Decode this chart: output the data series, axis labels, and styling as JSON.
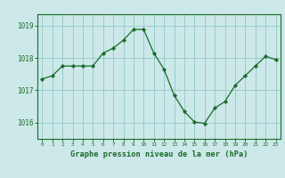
{
  "x": [
    0,
    1,
    2,
    3,
    4,
    5,
    6,
    7,
    8,
    9,
    10,
    11,
    12,
    13,
    14,
    15,
    16,
    17,
    18,
    19,
    20,
    21,
    22,
    23
  ],
  "y": [
    1017.35,
    1017.45,
    1017.75,
    1017.75,
    1017.75,
    1017.75,
    1018.15,
    1018.3,
    1018.55,
    1018.88,
    1018.88,
    1018.15,
    1017.65,
    1016.85,
    1016.35,
    1016.02,
    1015.98,
    1016.45,
    1016.65,
    1017.15,
    1017.45,
    1017.75,
    1018.05,
    1017.95
  ],
  "line_color": "#1a6b2a",
  "marker_color": "#1a6b2a",
  "bg_color": "#cce8e8",
  "grid_color": "#99cccc",
  "axis_color": "#1a6b2a",
  "xlabel": "Graphe pression niveau de la mer (hPa)",
  "ylim": [
    1015.5,
    1019.35
  ],
  "yticks": [
    1016,
    1017,
    1018,
    1019
  ],
  "xlim": [
    -0.5,
    23.5
  ],
  "xticks": [
    0,
    1,
    2,
    3,
    4,
    5,
    6,
    7,
    8,
    9,
    10,
    11,
    12,
    13,
    14,
    15,
    16,
    17,
    18,
    19,
    20,
    21,
    22,
    23
  ]
}
